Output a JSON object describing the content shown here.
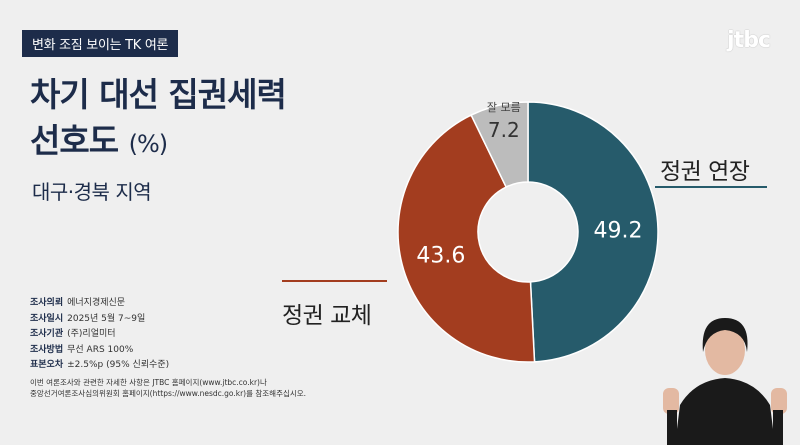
{
  "header": {
    "tag": "변화 조짐 보이는 TK 여론",
    "logo": "jtbc"
  },
  "title": {
    "line1": "차기 대선 집권세력",
    "line2": "선호도",
    "unit": "(%)"
  },
  "region": "대구·경북 지역",
  "survey": {
    "items": [
      {
        "key": "조사의뢰",
        "value": "에너지경제신문"
      },
      {
        "key": "조사일시",
        "value": "2025년 5월 7~9일"
      },
      {
        "key": "조사기관",
        "value": "(주)리얼미터"
      },
      {
        "key": "조사방법",
        "value": "무선 ARS 100%"
      },
      {
        "key": "표본오차",
        "value": "±2.5%p (95% 신뢰수준)"
      }
    ],
    "note_line1": "이번 여론조사와 관련한 자세한 사항은 JTBC 홈페이지(www.jtbc.co.kr)나",
    "note_line2": "중앙선거여론조사심의위원회 홈페이지(https://www.nesdc.go.kr)를 참조해주십시오."
  },
  "chart_data": {
    "type": "pie",
    "donut": true,
    "categories": [
      "정권 연장",
      "정권 교체",
      "잘 모름"
    ],
    "values": [
      49.2,
      43.6,
      7.2
    ],
    "value_labels": [
      "49.2",
      "43.6",
      "7.2"
    ],
    "colors": [
      "#265b6b",
      "#a33d1f",
      "#bcbcbc"
    ],
    "label_colors": [
      "#ffffff",
      "#ffffff",
      "#333333"
    ]
  }
}
